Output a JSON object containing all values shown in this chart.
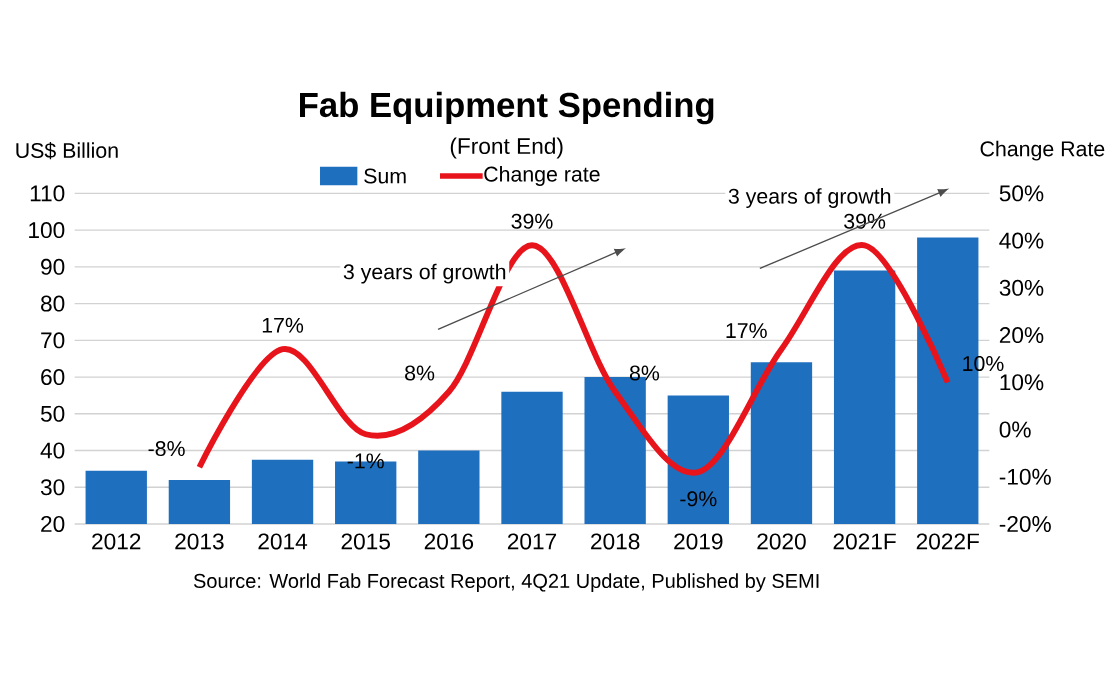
{
  "chart_data": {
    "type": "bar",
    "title": "Fab Equipment Spending",
    "subtitle": "(Front End)",
    "ylabel": "US$ Billion",
    "y2label": "Change Rate",
    "categories": [
      "2012",
      "2013",
      "2014",
      "2015",
      "2016",
      "2017",
      "2018",
      "2019",
      "2020",
      "2021F",
      "2022F"
    ],
    "series": [
      {
        "name": "Sum",
        "color": "#1f6fbf",
        "values": [
          34.5,
          32,
          37.5,
          37,
          40,
          56,
          60,
          55,
          64,
          89,
          98
        ]
      },
      {
        "name": "Change rate",
        "type": "line",
        "axis": "y2",
        "color": "#e8141b",
        "values": [
          null,
          -8,
          17,
          -1,
          8,
          39,
          8,
          -9,
          17,
          39,
          10
        ],
        "value_labels": [
          null,
          "-8%",
          "17%",
          "-1%",
          "8%",
          "39%",
          "8%",
          "-9%",
          "17%",
          "39%",
          "10%"
        ]
      }
    ],
    "ylim": [
      20,
      110
    ],
    "yticks": [
      20,
      30,
      40,
      50,
      60,
      70,
      80,
      90,
      100,
      110
    ],
    "y2lim": [
      -20,
      50
    ],
    "y2ticks": [
      {
        "value": -20,
        "label": "-20%"
      },
      {
        "value": -10,
        "label": "-10%"
      },
      {
        "value": 0,
        "label": "0%"
      },
      {
        "value": 10,
        "label": "10%"
      },
      {
        "value": 20,
        "label": "20%"
      },
      {
        "value": 30,
        "label": "30%"
      },
      {
        "value": 40,
        "label": "40%"
      },
      {
        "value": 50,
        "label": "50%"
      }
    ],
    "grid": "y",
    "legend": "top",
    "marker": "none",
    "line_style": "solid",
    "annotations": [
      "3 years of growth",
      "3 years of growth",
      "Source: World Fab Forecast Report, 4Q21 Update, Published by SEMI"
    ]
  }
}
